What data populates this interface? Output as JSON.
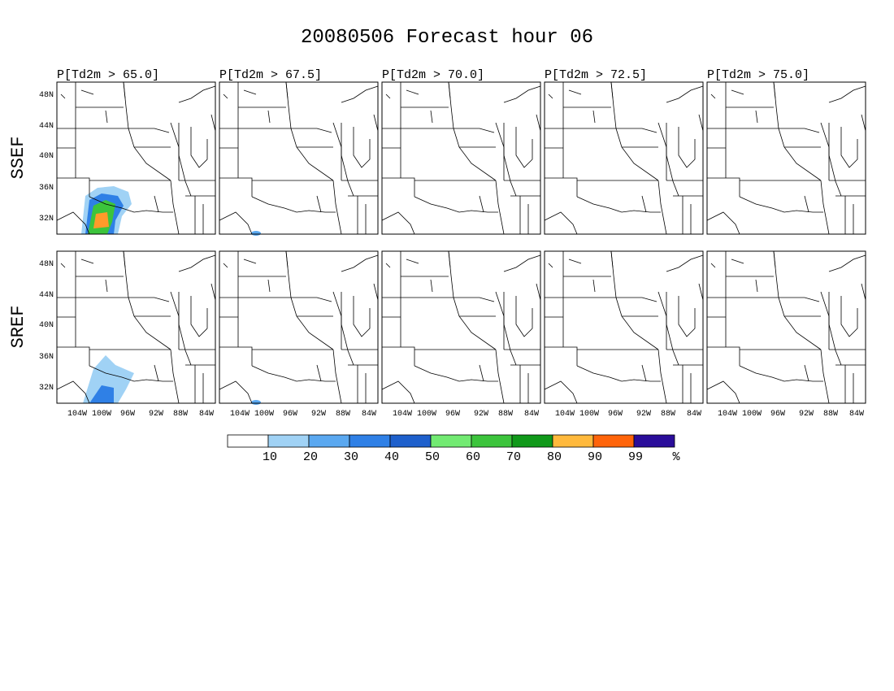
{
  "title": "20080506 Forecast hour 06",
  "columns": [
    "P[Td2m > 65.0]",
    "P[Td2m > 67.5]",
    "P[Td2m > 70.0]",
    "P[Td2m > 72.5]",
    "P[Td2m > 75.0]"
  ],
  "rows": [
    "SSEF",
    "SREF"
  ],
  "lat_labels": [
    "48N",
    "44N",
    "40N",
    "36N",
    "32N"
  ],
  "lon_labels": [
    "104W",
    "100W",
    "96W",
    "92W",
    "88W",
    "84W"
  ],
  "colorbar": {
    "colors": [
      "#ffffff",
      "#a0d2f5",
      "#5aa8f0",
      "#2f80e6",
      "#1e60cc",
      "#72ea72",
      "#3cc43c",
      "#10991a",
      "#ffb93c",
      "#ff640a",
      "#2a0d9a"
    ],
    "labels": [
      "10",
      "20",
      "30",
      "40",
      "50",
      "60",
      "70",
      "80",
      "90",
      "99",
      "%"
    ]
  }
}
